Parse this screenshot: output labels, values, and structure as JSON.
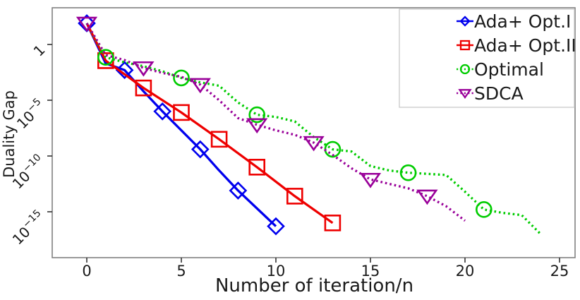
{
  "chart_data": {
    "type": "line",
    "title": "",
    "xlabel": "Number of iteration/n",
    "ylabel": "Duality Gap",
    "x_ticks": [
      0,
      5,
      10,
      15,
      20,
      25
    ],
    "y_ticks": [
      {
        "base": "1",
        "exp": "",
        "exp_value": 0
      },
      {
        "base": "10",
        "exp": "-5",
        "exp_value": -5
      },
      {
        "base": "10",
        "exp": "-10",
        "exp_value": -10
      },
      {
        "base": "10",
        "exp": "-15",
        "exp_value": -15
      }
    ],
    "xlim": [
      -1.8,
      25.9
    ],
    "ylim_log10": [
      -19.0,
      3.3
    ],
    "y_scale": "log",
    "grid": false,
    "legend_position": "top-right",
    "series": [
      {
        "name": "Ada+ Opt.I",
        "color": "#0000ee",
        "line_style": "solid",
        "marker": "diamond",
        "marker_x": [
          0,
          2,
          4,
          6,
          8,
          10
        ],
        "points_x": [
          0,
          1,
          2,
          3,
          4,
          5,
          6,
          7,
          8,
          9,
          10
        ],
        "points_log10_gap": [
          1.9,
          -1.7,
          -2.3,
          -4.2,
          -6.0,
          -7.7,
          -9.4,
          -11.3,
          -13.1,
          -14.7,
          -16.3
        ]
      },
      {
        "name": "Ada+ Opt.II",
        "color": "#ee0000",
        "line_style": "solid",
        "marker": "square",
        "marker_x": [
          1,
          3,
          5,
          7,
          9,
          11,
          13
        ],
        "points_x": [
          0,
          1,
          3,
          5,
          7,
          9,
          11,
          13
        ],
        "points_log10_gap": [
          1.9,
          -1.45,
          -3.9,
          -6.1,
          -8.5,
          -11.0,
          -13.6,
          -16.0
        ]
      },
      {
        "name": "Optimal",
        "color": "#00cc00",
        "line_style": "dotted",
        "marker": "circle",
        "marker_x": [
          1,
          5,
          9,
          13,
          17,
          21
        ],
        "points_x": [
          0,
          1,
          2,
          3,
          4,
          5,
          6,
          7,
          8,
          9,
          10,
          11,
          12,
          13,
          14,
          15,
          16,
          17,
          18,
          19,
          20,
          21,
          22,
          23,
          24
        ],
        "points_log10_gap": [
          1.9,
          -1.15,
          -1.6,
          -1.95,
          -2.4,
          -3.0,
          -3.4,
          -3.7,
          -5.2,
          -6.3,
          -6.5,
          -6.9,
          -8.3,
          -9.4,
          -9.6,
          -10.9,
          -11.3,
          -11.5,
          -11.6,
          -11.7,
          -13.2,
          -14.8,
          -15.1,
          -15.3,
          -17.0
        ]
      },
      {
        "name": "SDCA",
        "color": "#990099",
        "line_style": "dotted",
        "marker": "triangle-down",
        "marker_x": [
          0,
          3,
          6,
          9,
          12,
          15,
          18
        ],
        "points_x": [
          0,
          1,
          2,
          3,
          4,
          5,
          6,
          7,
          8,
          9,
          10,
          11,
          12,
          13,
          14,
          15,
          16,
          17,
          18,
          19,
          20
        ],
        "points_log10_gap": [
          1.9,
          -0.95,
          -1.4,
          -2.1,
          -2.55,
          -2.9,
          -3.6,
          -5.0,
          -6.6,
          -7.2,
          -7.7,
          -8.1,
          -8.8,
          -9.9,
          -11.1,
          -12.1,
          -12.5,
          -12.9,
          -13.6,
          -14.5,
          -15.8
        ]
      }
    ],
    "colors": {
      "axis_border": "#808080",
      "tick": "#333333",
      "text": "#1a1a1a",
      "legend_border": "#c8c8c8",
      "background": "#ffffff"
    }
  }
}
